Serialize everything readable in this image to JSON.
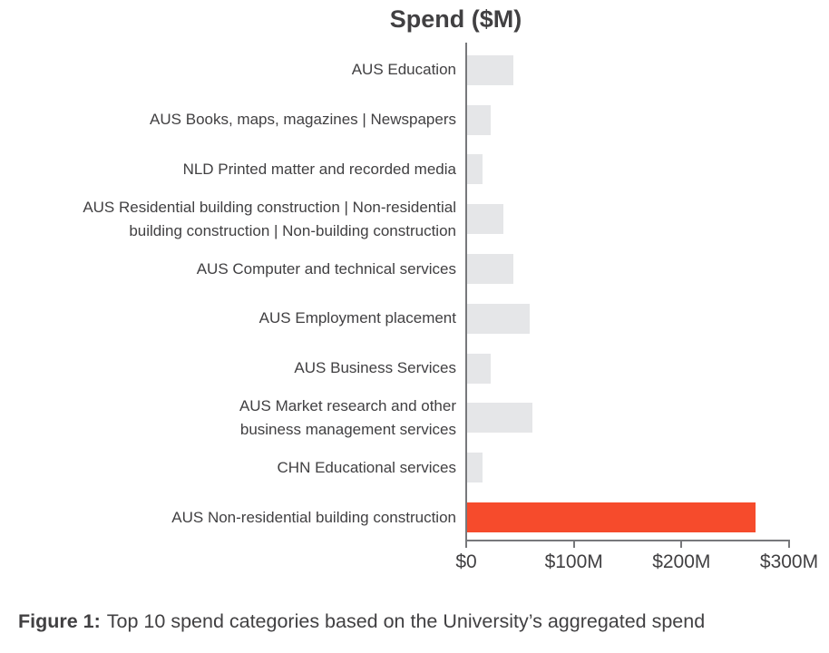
{
  "chart": {
    "title": "Spend ($M)",
    "bars": [
      {
        "label": "AUS Education",
        "value": 43,
        "highlight": false
      },
      {
        "label": "AUS Books, maps, magazines | Newspapers",
        "value": 22,
        "highlight": false
      },
      {
        "label": "NLD Printed matter and recorded media",
        "value": 14,
        "highlight": false
      },
      {
        "label": "AUS Residential building construction | Non-residential\nbuilding construction | Non-building construction",
        "value": 34,
        "highlight": false
      },
      {
        "label": "AUS Computer and technical services",
        "value": 43,
        "highlight": false
      },
      {
        "label": "AUS Employment placement",
        "value": 58,
        "highlight": false
      },
      {
        "label": "AUS Business Services",
        "value": 22,
        "highlight": false
      },
      {
        "label": "AUS Market research and other\nbusiness management services",
        "value": 61,
        "highlight": false
      },
      {
        "label": "CHN Educational services",
        "value": 14,
        "highlight": false
      },
      {
        "label": "AUS Non-residential building construction",
        "value": 268,
        "highlight": true
      }
    ],
    "x_ticks": [
      "$0",
      "$100M",
      "$200M",
      "$300M"
    ],
    "colors": {
      "bar_default": "#E5E6E8",
      "bar_highlight": "#F64B2C",
      "axis": "#77787B",
      "text": "#414042"
    }
  },
  "caption": {
    "prefix": "Figure 1:",
    "text": "Top 10 spend categories based on the University’s aggregated spend"
  },
  "chart_data": {
    "type": "bar",
    "orientation": "horizontal",
    "title": "Spend ($M)",
    "categories": [
      "AUS Education",
      "AUS Books, maps, magazines | Newspapers",
      "NLD Printed matter and recorded media",
      "AUS Residential building construction | Non-residential building construction | Non-building construction",
      "AUS Computer and technical services",
      "AUS Employment placement",
      "AUS Business Services",
      "AUS Market research and other business management services",
      "CHN Educational services",
      "AUS Non-residential building construction"
    ],
    "values": [
      43,
      22,
      14,
      34,
      43,
      58,
      22,
      61,
      14,
      268
    ],
    "units": "$M",
    "xlim": [
      0,
      300
    ],
    "x_tick_labels": [
      "$0",
      "$100M",
      "$200M",
      "$300M"
    ],
    "highlighted_category": "AUS Non-residential building construction",
    "highlight_color": "#F64B2C",
    "default_color": "#E5E6E8",
    "legend": false,
    "grid": false
  }
}
